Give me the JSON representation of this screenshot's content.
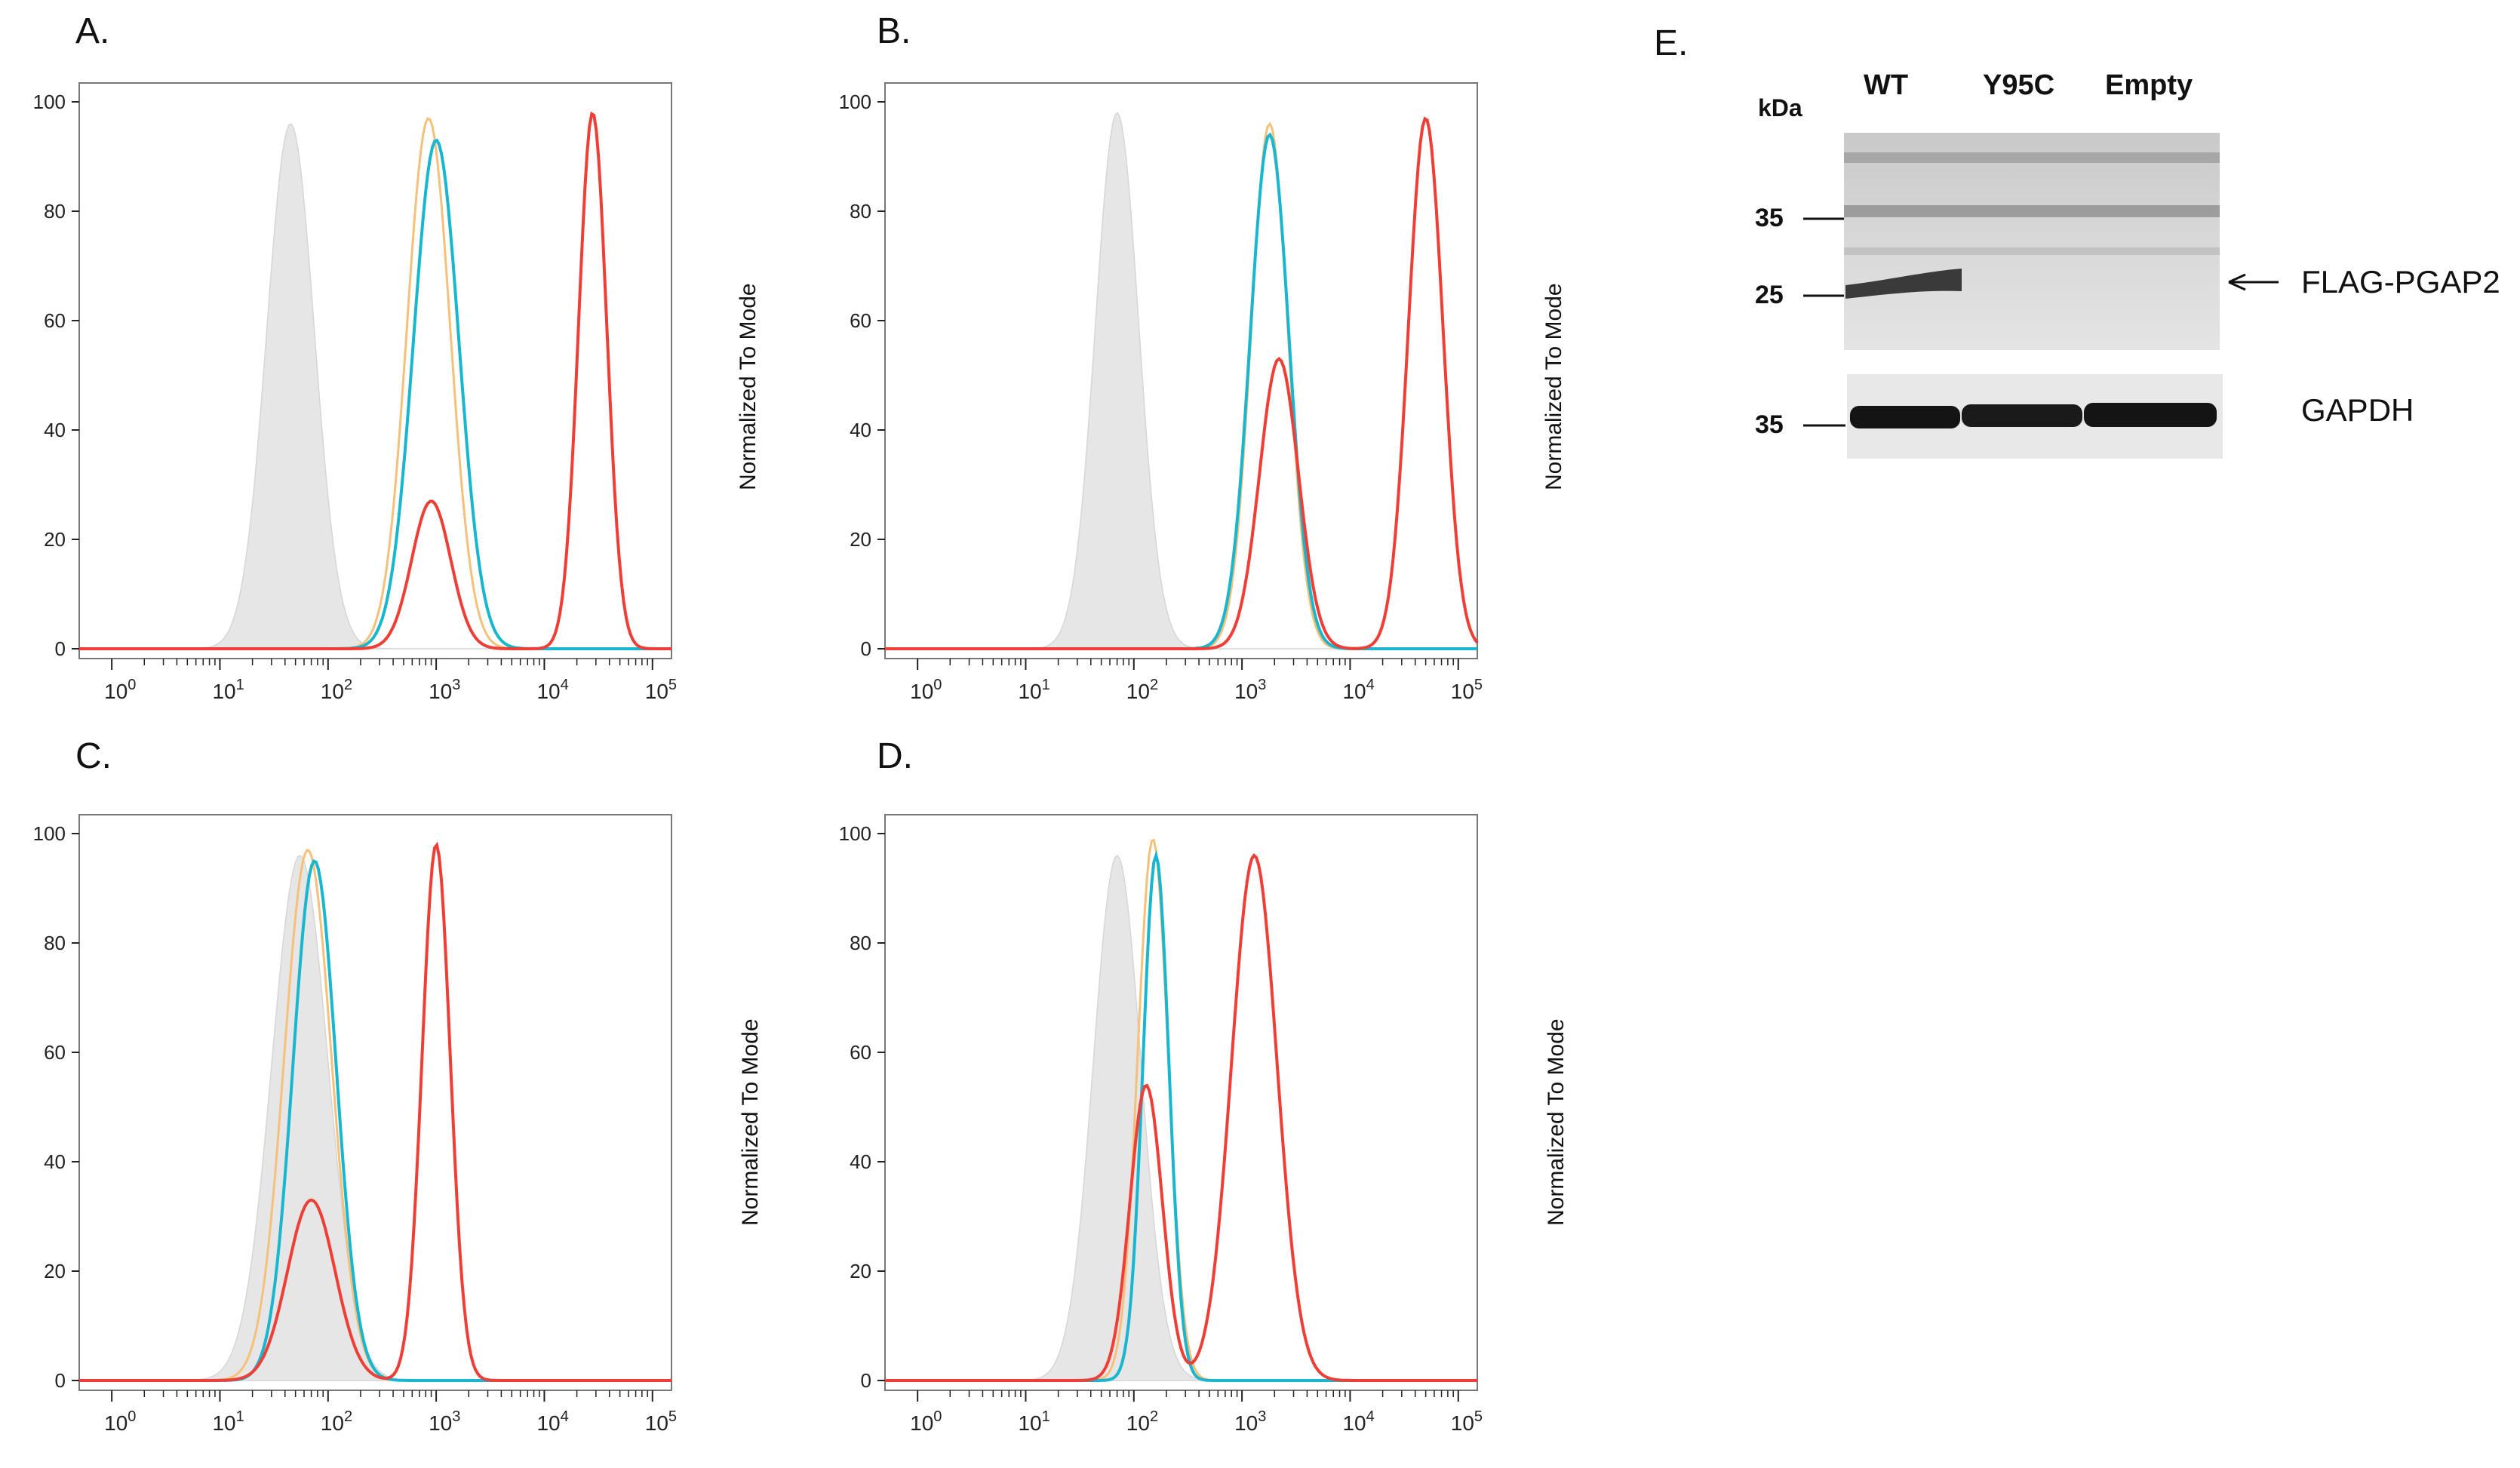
{
  "figure": {
    "panels": [
      {
        "id": "A",
        "label": "A.",
        "ylabel": "Normalized To Mode"
      },
      {
        "id": "B",
        "label": "B.",
        "ylabel": "Normalized To Mode"
      },
      {
        "id": "C",
        "label": "C.",
        "ylabel": "Normalized To Mode"
      },
      {
        "id": "D",
        "label": "D.",
        "ylabel": "Normalized To Mode"
      }
    ],
    "blot": {
      "label": "E.",
      "kda_label": "kDa",
      "lanes": [
        "WT",
        "Y95C",
        "Empty"
      ],
      "markers_top": [
        "35",
        "25"
      ],
      "marker_bottom": "35",
      "arrow_label": "FLAG-PGAP2",
      "loading_label": "GAPDH"
    },
    "colors": {
      "gray": "#e6e6e6",
      "orange": "#f5c07a",
      "cyan": "#19b6cf",
      "red": "#ef3e36"
    }
  },
  "chart_data": [
    {
      "type": "line",
      "panel": "A",
      "ylabel": "Normalized To Mode",
      "xscale": "log",
      "xlim": [
        0.5,
        150000
      ],
      "ylim": [
        0,
        100
      ],
      "yticks": [
        "0",
        "20",
        "40",
        "60",
        "80",
        "100"
      ],
      "xticks": [
        "10^0",
        "10^1",
        "10^2",
        "10^3",
        "10^4",
        "10^5"
      ],
      "series": [
        {
          "name": "gray",
          "filled": true,
          "peaks": [
            {
              "center": 45,
              "height": 96,
              "width": 0.22
            }
          ]
        },
        {
          "name": "orange",
          "peaks": [
            {
              "center": 850,
              "height": 97,
              "width": 0.2
            }
          ]
        },
        {
          "name": "cyan",
          "peaks": [
            {
              "center": 1000,
              "height": 93,
              "width": 0.21
            }
          ]
        },
        {
          "name": "red",
          "peaks": [
            {
              "center": 900,
              "height": 27,
              "width": 0.18
            },
            {
              "center": 28000,
              "height": 98,
              "width": 0.13
            }
          ]
        }
      ]
    },
    {
      "type": "line",
      "panel": "B",
      "ylabel": "Normalized To Mode",
      "xscale": "log",
      "xlim": [
        0.5,
        150000
      ],
      "ylim": [
        0,
        100
      ],
      "yticks": [
        "0",
        "20",
        "40",
        "60",
        "80",
        "100"
      ],
      "xticks": [
        "10^0",
        "10^1",
        "10^2",
        "10^3",
        "10^4",
        "10^5"
      ],
      "series": [
        {
          "name": "gray",
          "filled": true,
          "peaks": [
            {
              "center": 70,
              "height": 98,
              "width": 0.2
            }
          ]
        },
        {
          "name": "orange",
          "peaks": [
            {
              "center": 1800,
              "height": 96,
              "width": 0.17
            }
          ]
        },
        {
          "name": "cyan",
          "peaks": [
            {
              "center": 1800,
              "height": 94,
              "width": 0.18
            }
          ]
        },
        {
          "name": "red",
          "peaks": [
            {
              "center": 2200,
              "height": 53,
              "width": 0.18
            },
            {
              "center": 50000,
              "height": 97,
              "width": 0.16
            }
          ]
        }
      ]
    },
    {
      "type": "line",
      "panel": "C",
      "ylabel": "Normalized To Mode",
      "xscale": "log",
      "xlim": [
        0.5,
        150000
      ],
      "ylim": [
        0,
        100
      ],
      "yticks": [
        "0",
        "20",
        "40",
        "60",
        "80",
        "100"
      ],
      "xticks": [
        "10^0",
        "10^1",
        "10^2",
        "10^3",
        "10^4",
        "10^5"
      ],
      "series": [
        {
          "name": "gray",
          "filled": true,
          "peaks": [
            {
              "center": 55,
              "height": 96,
              "width": 0.26
            }
          ]
        },
        {
          "name": "orange",
          "peaks": [
            {
              "center": 65,
              "height": 97,
              "width": 0.22
            }
          ]
        },
        {
          "name": "cyan",
          "peaks": [
            {
              "center": 75,
              "height": 95,
              "width": 0.2
            }
          ]
        },
        {
          "name": "red",
          "peaks": [
            {
              "center": 70,
              "height": 33,
              "width": 0.22
            },
            {
              "center": 1000,
              "height": 98,
              "width": 0.13
            }
          ]
        }
      ]
    },
    {
      "type": "line",
      "panel": "D",
      "ylabel": "Normalized To Mode",
      "xscale": "log",
      "xlim": [
        0.5,
        150000
      ],
      "ylim": [
        0,
        100
      ],
      "yticks": [
        "0",
        "20",
        "40",
        "60",
        "80",
        "100"
      ],
      "xticks": [
        "10^0",
        "10^1",
        "10^2",
        "10^3",
        "10^4",
        "10^5"
      ],
      "series": [
        {
          "name": "gray",
          "filled": true,
          "peaks": [
            {
              "center": 70,
              "height": 96,
              "width": 0.22
            }
          ]
        },
        {
          "name": "orange",
          "peaks": [
            {
              "center": 150,
              "height": 99,
              "width": 0.14
            }
          ]
        },
        {
          "name": "cyan",
          "peaks": [
            {
              "center": 160,
              "height": 96,
              "width": 0.12
            }
          ]
        },
        {
          "name": "red",
          "peaks": [
            {
              "center": 130,
              "height": 54,
              "width": 0.15
            },
            {
              "center": 1300,
              "height": 96,
              "width": 0.21
            }
          ]
        }
      ]
    }
  ]
}
